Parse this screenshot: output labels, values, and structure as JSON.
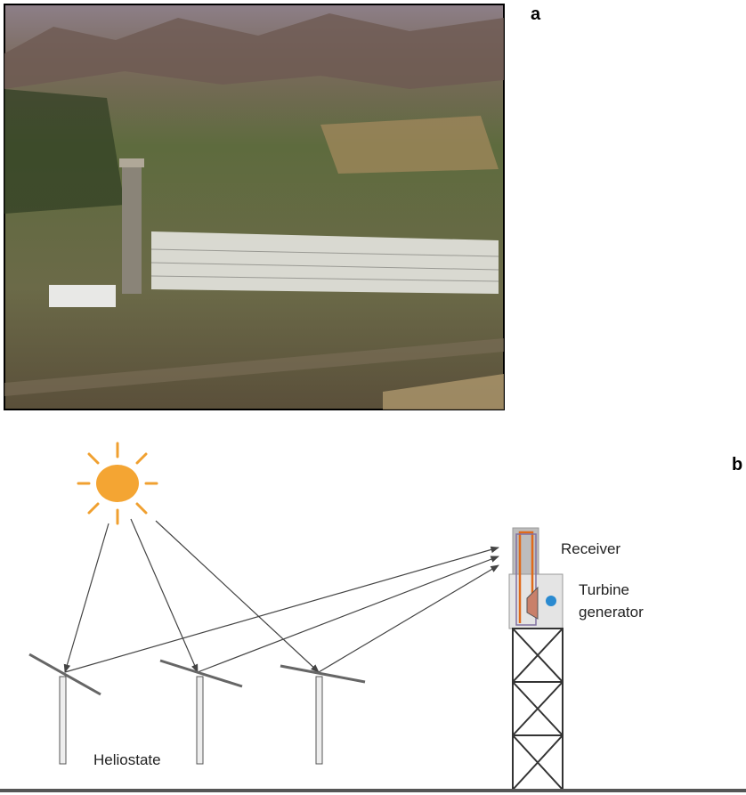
{
  "panel_a": {
    "label": "a"
  },
  "panel_b": {
    "label": "b",
    "receiver": "Receiver",
    "turbine_generator": [
      "Turbine",
      "generator"
    ],
    "heliostat": "Heliostate"
  }
}
